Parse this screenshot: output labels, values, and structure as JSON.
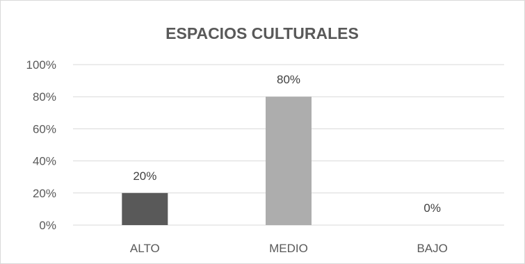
{
  "chart_data": {
    "type": "bar",
    "title": "ESPACIOS CULTURALES",
    "categories": [
      "ALTO",
      "MEDIO",
      "BAJO"
    ],
    "values": [
      20,
      80,
      0
    ],
    "value_labels": [
      "20%",
      "80%",
      "0%"
    ],
    "colors": [
      "#595959",
      "#adadad",
      "#d9d9d9"
    ],
    "ylim": [
      0,
      100
    ],
    "yticks": [
      "0%",
      "20%",
      "40%",
      "60%",
      "80%",
      "100%"
    ],
    "ytick_values": [
      0,
      20,
      40,
      60,
      80,
      100
    ],
    "grid": true,
    "legend": "none"
  }
}
